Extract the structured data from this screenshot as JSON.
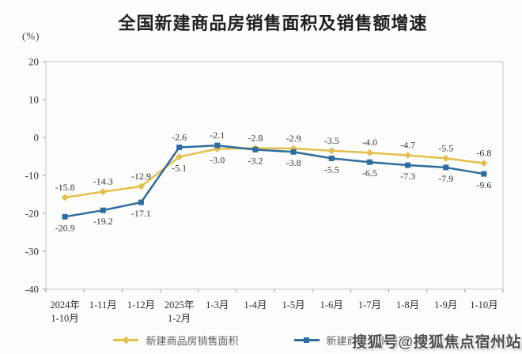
{
  "title": "全国新建商品房销售面积及销售额增速",
  "y_axis_unit": "(%)",
  "watermark": "搜狐号@搜狐焦点宿州站",
  "colors": {
    "series_area": "#E3BF4B",
    "series_amount": "#2E6C9E",
    "plot_border": "#C6C6C6",
    "tick": "#9a9a9a",
    "text": "#2e2e2e"
  },
  "chart_data": {
    "type": "line",
    "categories": [
      "2024年\n1-10月",
      "1-11月",
      "1-12月",
      "2025年\n1-2月",
      "1-3月",
      "1-4月",
      "1-5月",
      "1-6月",
      "1-7月",
      "1-8月",
      "1-9月",
      "1-10月"
    ],
    "series": [
      {
        "name": "新建商品房销售面积",
        "color": "#E3BF4B",
        "marker": "diamond",
        "values": [
          -15.8,
          -14.3,
          -12.9,
          -5.1,
          -3.0,
          -2.8,
          -2.9,
          -3.5,
          -4.0,
          -4.7,
          -5.5,
          -6.8
        ]
      },
      {
        "name": "新建商品房销售额",
        "color": "#2E6C9E",
        "marker": "square",
        "values": [
          -20.9,
          -19.2,
          -17.1,
          -2.6,
          -2.1,
          -3.2,
          -3.8,
          -5.5,
          -6.5,
          -7.3,
          -7.9,
          -9.6
        ]
      }
    ],
    "title": "全国新建商品房销售面积及销售额增速",
    "xlabel": "",
    "ylabel": "(%)",
    "ylim": [
      -40,
      20
    ],
    "y_ticks": [
      20,
      10,
      0,
      -10,
      -20,
      -30,
      -40
    ],
    "grid": false,
    "legend_position": "bottom",
    "data_labels": true
  }
}
